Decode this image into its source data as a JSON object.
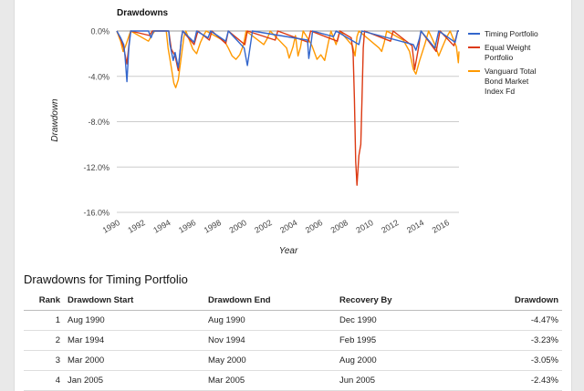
{
  "chart_data": {
    "type": "line",
    "title": "Drawdowns",
    "xlabel": "Year",
    "ylabel": "Drawdown",
    "xlim": [
      1990,
      2017
    ],
    "ylim": [
      -16,
      0
    ],
    "x_ticks": [
      "1990",
      "1992",
      "1994",
      "1996",
      "1998",
      "2000",
      "2002",
      "2004",
      "2006",
      "2008",
      "2010",
      "2012",
      "2014",
      "2016"
    ],
    "y_ticks": [
      "0.0%",
      "-4.0%",
      "-8.0%",
      "-12.0%",
      "-16.0%"
    ],
    "legend_position": "right",
    "series": [
      {
        "name": "Timing Portfolio",
        "color": "#3366cc",
        "points": [
          [
            1990,
            0
          ],
          [
            1990.3,
            -0.6
          ],
          [
            1990.55,
            -1.2
          ],
          [
            1990.65,
            -2.2
          ],
          [
            1990.8,
            -4.47
          ],
          [
            1990.95,
            -1.5
          ],
          [
            1991.1,
            0
          ],
          [
            1992.5,
            0
          ],
          [
            1992.7,
            -0.6
          ],
          [
            1992.9,
            0
          ],
          [
            1994.1,
            0
          ],
          [
            1994.2,
            -1.2
          ],
          [
            1994.45,
            -2.6
          ],
          [
            1994.6,
            -1.9
          ],
          [
            1994.85,
            -3.23
          ],
          [
            1995.1,
            -0.7
          ],
          [
            1995.2,
            0
          ],
          [
            1996.1,
            -1.0
          ],
          [
            1996.3,
            0
          ],
          [
            1997.2,
            -0.6
          ],
          [
            1997.4,
            0
          ],
          [
            1998.6,
            -0.9
          ],
          [
            1998.8,
            0
          ],
          [
            2000.05,
            -1.5
          ],
          [
            2000.3,
            -3.05
          ],
          [
            2000.6,
            -0.8
          ],
          [
            2000.7,
            0
          ],
          [
            2005.05,
            -0.8
          ],
          [
            2005.15,
            -2.43
          ],
          [
            2005.35,
            -0.9
          ],
          [
            2005.45,
            0
          ],
          [
            2007.1,
            -0.5
          ],
          [
            2007.3,
            0
          ],
          [
            2009.1,
            -1.2
          ],
          [
            2009.35,
            0
          ],
          [
            2013.4,
            -1.2
          ],
          [
            2013.6,
            -1.7
          ],
          [
            2013.9,
            -0.6
          ],
          [
            2014.0,
            0
          ],
          [
            2015.1,
            -1.5
          ],
          [
            2015.4,
            0
          ],
          [
            2016.7,
            -1.0
          ],
          [
            2016.9,
            0
          ],
          [
            2017,
            0
          ]
        ]
      },
      {
        "name": "Equal Weight Portfolio",
        "color": "#dc3912",
        "points": [
          [
            1990,
            0
          ],
          [
            1990.3,
            -0.7
          ],
          [
            1990.55,
            -1.5
          ],
          [
            1990.8,
            -2.9
          ],
          [
            1991.0,
            -0.8
          ],
          [
            1991.1,
            0
          ],
          [
            1992.6,
            -0.4
          ],
          [
            1992.8,
            0
          ],
          [
            1994.1,
            0
          ],
          [
            1994.3,
            -1.6
          ],
          [
            1994.6,
            -2.2
          ],
          [
            1994.85,
            -3.5
          ],
          [
            1995.1,
            -0.6
          ],
          [
            1995.2,
            0
          ],
          [
            1996.1,
            -1.2
          ],
          [
            1996.4,
            0
          ],
          [
            1997.3,
            -0.8
          ],
          [
            1997.5,
            0
          ],
          [
            1998.6,
            -1.1
          ],
          [
            1998.8,
            0
          ],
          [
            2000.1,
            -1.2
          ],
          [
            2000.3,
            0
          ],
          [
            2002.5,
            -0.8
          ],
          [
            2002.7,
            0
          ],
          [
            2005.1,
            -1.0
          ],
          [
            2005.3,
            0
          ],
          [
            2007.4,
            -0.9
          ],
          [
            2007.6,
            0
          ],
          [
            2008.5,
            -0.6
          ],
          [
            2008.65,
            -2.0
          ],
          [
            2008.75,
            -6.0
          ],
          [
            2008.85,
            -11.5
          ],
          [
            2008.95,
            -13.6
          ],
          [
            2009.1,
            -11.0
          ],
          [
            2009.25,
            -10.0
          ],
          [
            2009.35,
            -6.0
          ],
          [
            2009.45,
            -1.5
          ],
          [
            2009.55,
            0
          ],
          [
            2011.6,
            -0.9
          ],
          [
            2011.8,
            0
          ],
          [
            2013.3,
            -1.3
          ],
          [
            2013.5,
            -3.4
          ],
          [
            2013.8,
            -1.5
          ],
          [
            2014.0,
            0
          ],
          [
            2015.2,
            -1.8
          ],
          [
            2015.5,
            0
          ],
          [
            2016.6,
            -1.3
          ],
          [
            2016.9,
            0
          ],
          [
            2017,
            0
          ]
        ]
      },
      {
        "name": "Vanguard Total Bond Market Index Fd",
        "color": "#ff9900",
        "points": [
          [
            1990,
            0
          ],
          [
            1990.3,
            -0.9
          ],
          [
            1990.5,
            -1.8
          ],
          [
            1990.7,
            -1.3
          ],
          [
            1991.0,
            -0.3
          ],
          [
            1991.1,
            0
          ],
          [
            1992.5,
            -0.9
          ],
          [
            1992.8,
            -0.3
          ],
          [
            1993.0,
            0
          ],
          [
            1993.9,
            0
          ],
          [
            1994.05,
            -1.5
          ],
          [
            1994.3,
            -3.2
          ],
          [
            1994.5,
            -4.6
          ],
          [
            1994.65,
            -5.0
          ],
          [
            1994.85,
            -4.3
          ],
          [
            1995.1,
            -2.2
          ],
          [
            1995.3,
            -0.5
          ],
          [
            1995.45,
            0
          ],
          [
            1996.0,
            -1.6
          ],
          [
            1996.3,
            -2.0
          ],
          [
            1996.6,
            -1.0
          ],
          [
            1996.9,
            -0.3
          ],
          [
            1997.05,
            0
          ],
          [
            1998.5,
            -0.9
          ],
          [
            1998.8,
            -1.5
          ],
          [
            1999.1,
            -2.2
          ],
          [
            1999.4,
            -2.5
          ],
          [
            1999.7,
            -2.1
          ],
          [
            2000.0,
            -1.2
          ],
          [
            2000.2,
            0
          ],
          [
            2001.6,
            -1.2
          ],
          [
            2001.9,
            -0.6
          ],
          [
            2002.1,
            0
          ],
          [
            2003.4,
            -1.5
          ],
          [
            2003.6,
            -2.4
          ],
          [
            2003.9,
            -1.4
          ],
          [
            2004.1,
            -0.4
          ],
          [
            2004.3,
            -2.2
          ],
          [
            2004.5,
            -1.4
          ],
          [
            2004.7,
            0
          ],
          [
            2005.1,
            -0.7
          ],
          [
            2005.4,
            -1.3
          ],
          [
            2005.8,
            -2.5
          ],
          [
            2006.1,
            -2.1
          ],
          [
            2006.4,
            -2.6
          ],
          [
            2006.7,
            -1.0
          ],
          [
            2006.9,
            0
          ],
          [
            2007.3,
            -1.2
          ],
          [
            2007.6,
            0
          ],
          [
            2008.6,
            -1.3
          ],
          [
            2008.8,
            -2.2
          ],
          [
            2008.95,
            -0.5
          ],
          [
            2009.1,
            0
          ],
          [
            2010.7,
            -1.5
          ],
          [
            2010.9,
            -1.8
          ],
          [
            2011.1,
            -1.0
          ],
          [
            2011.3,
            0
          ],
          [
            2012.6,
            -0.8
          ],
          [
            2013.1,
            -1.8
          ],
          [
            2013.4,
            -3.4
          ],
          [
            2013.6,
            -3.8
          ],
          [
            2013.9,
            -2.6
          ],
          [
            2014.3,
            -1.2
          ],
          [
            2014.6,
            0
          ],
          [
            2015.1,
            -1.2
          ],
          [
            2015.4,
            -2.2
          ],
          [
            2015.7,
            -1.4
          ],
          [
            2016.0,
            -0.6
          ],
          [
            2016.3,
            0
          ],
          [
            2016.8,
            -1.4
          ],
          [
            2016.95,
            -2.8
          ],
          [
            2017,
            -1.8
          ]
        ]
      }
    ]
  },
  "table": {
    "title": "Drawdowns for Timing Portfolio",
    "headers": [
      "Rank",
      "Drawdown Start",
      "Drawdown End",
      "Recovery By",
      "Drawdown"
    ],
    "rows": [
      [
        "1",
        "Aug 1990",
        "Aug 1990",
        "Dec 1990",
        "-4.47%"
      ],
      [
        "2",
        "Mar 1994",
        "Nov 1994",
        "Feb 1995",
        "-3.23%"
      ],
      [
        "3",
        "Mar 2000",
        "May 2000",
        "Aug 2000",
        "-3.05%"
      ],
      [
        "4",
        "Jan 2005",
        "Mar 2005",
        "Jun 2005",
        "-2.43%"
      ]
    ]
  }
}
